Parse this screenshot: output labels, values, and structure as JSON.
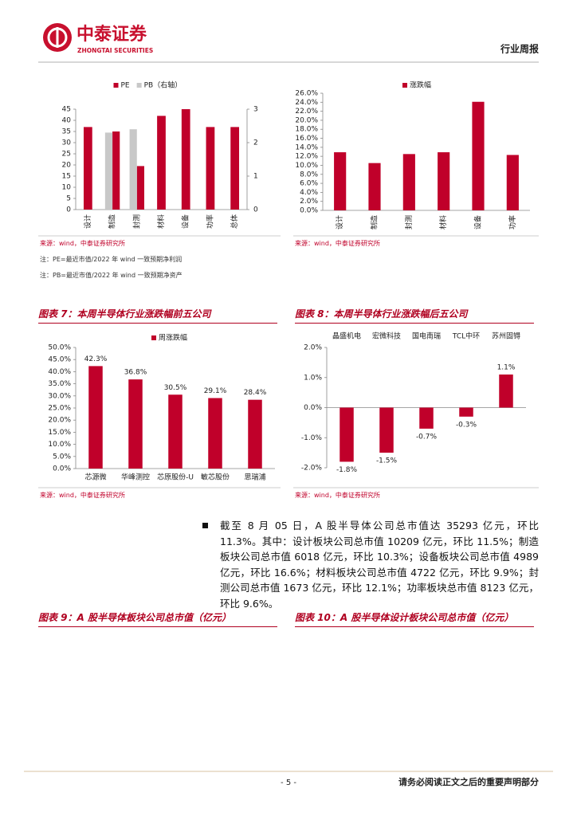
{
  "header": {
    "logo_cn": "中泰证券",
    "logo_en": "ZHONGTAI SECURITIES",
    "report_type": "行业周报"
  },
  "chart_data": [
    {
      "type": "bar",
      "categories": [
        "设计",
        "制造",
        "封测",
        "材料",
        "设备",
        "功率",
        "总体"
      ],
      "series": [
        {
          "name": "PE",
          "color": "#c0002a",
          "values": [
            37,
            35,
            19.5,
            42,
            45,
            37,
            37
          ]
        },
        {
          "name": "PB（右轴）",
          "color": "#c8c8c8",
          "axis": "y2",
          "values": [
            null,
            2.3,
            2.4,
            null,
            null,
            null,
            null
          ]
        }
      ],
      "ylim": [
        0,
        45
      ],
      "yticks": [
        0,
        5,
        10,
        15,
        20,
        25,
        30,
        35,
        40,
        45
      ],
      "y2lim": [
        0,
        3
      ],
      "y2ticks": [
        0,
        1,
        2,
        3
      ],
      "source": "来源：wind，中泰证券研究所",
      "notes": [
        "注：PE=最近市值/2022 年 wind 一致预期净利润",
        "注：PB=最近市值/2022 年 wind 一致预期净资产"
      ]
    },
    {
      "type": "bar",
      "categories": [
        "设计",
        "制造",
        "封测",
        "材料",
        "设备",
        "功率"
      ],
      "series": [
        {
          "name": "涨跌幅",
          "color": "#c0002a",
          "values": [
            12.9,
            10.5,
            12.5,
            12.9,
            24.1,
            12.3
          ]
        }
      ],
      "ylim": [
        0,
        26
      ],
      "yticks": [
        {
          "value": 0,
          "label": "0.0%"
        },
        {
          "value": 2,
          "label": "2.0%"
        },
        {
          "value": 4,
          "label": "4.0%"
        },
        {
          "value": 6,
          "label": "6.0%"
        },
        {
          "value": 8,
          "label": "8.0%"
        },
        {
          "value": 10,
          "label": "10.0%"
        },
        {
          "value": 12,
          "label": "12.0%"
        },
        {
          "value": 14,
          "label": "14.0%"
        },
        {
          "value": 16,
          "label": "16.0%"
        },
        {
          "value": 18,
          "label": "18.0%"
        },
        {
          "value": 20,
          "label": "20.0%"
        },
        {
          "value": 22,
          "label": "22.0%"
        },
        {
          "value": 24,
          "label": "24.0%"
        },
        {
          "value": 26,
          "label": "26.0%"
        }
      ],
      "source": "来源：wind，中泰证券研究所"
    },
    {
      "type": "bar",
      "title": "图表 7：本周半导体行业涨跌幅前五公司",
      "categories": [
        "芯源微",
        "华峰测控",
        "芯原股份-U",
        "敏芯股份",
        "思瑞浦"
      ],
      "series": [
        {
          "name": "周涨跌幅",
          "color": "#c0002a",
          "values": [
            42.3,
            36.8,
            30.5,
            29.1,
            28.4
          ],
          "value_labels": [
            "42.3%",
            "36.8%",
            "30.5%",
            "29.1%",
            "28.4%"
          ]
        }
      ],
      "ylim": [
        0,
        50
      ],
      "yticks": [
        {
          "value": 0,
          "label": "0.0%"
        },
        {
          "value": 5,
          "label": "5.0%"
        },
        {
          "value": 10,
          "label": "10.0%"
        },
        {
          "value": 15,
          "label": "15.0%"
        },
        {
          "value": 20,
          "label": "20.0%"
        },
        {
          "value": 25,
          "label": "25.0%"
        },
        {
          "value": 30,
          "label": "30.0%"
        },
        {
          "value": 35,
          "label": "35.0%"
        },
        {
          "value": 40,
          "label": "40.0%"
        },
        {
          "value": 45,
          "label": "45.0%"
        },
        {
          "value": 50,
          "label": "50.0%"
        }
      ],
      "source": "来源：wind，中泰证券研究所"
    },
    {
      "type": "bar",
      "title": "图表 8：本周半导体行业涨跌幅后五公司",
      "categories": [
        "晶盛机电",
        "宏微科技",
        "国电南瑞",
        "TCL中环",
        "苏州固锝"
      ],
      "values": [
        -1.8,
        -1.5,
        -0.7,
        -0.3,
        1.1
      ],
      "color": "#c0002a",
      "value_labels": [
        "-1.8%",
        "-1.5%",
        "-0.7%",
        "-0.3%",
        "1.1%"
      ],
      "ylim": [
        -2,
        2
      ],
      "yticks": [
        {
          "value": -2,
          "label": "-2.0%"
        },
        {
          "value": -1,
          "label": "-1.0%"
        },
        {
          "value": 0,
          "label": "0.0%"
        },
        {
          "value": 1,
          "label": "1.0%"
        },
        {
          "value": 2,
          "label": "2.0%"
        }
      ],
      "source": "来源：wind，中泰证券研究所"
    }
  ],
  "document": {
    "paragraph": "截至 8 月 05 日，A 股半导体公司总市值达 35293 亿元，环比 11.3%。其中：设计板块公司总市值 10209 亿元，环比 11.5%；制造板块公司总市值 6018 亿元，环比 10.3%；设备板块公司总市值 4989 亿元，环比 16.6%；材料板块公司总市值 4722 亿元，环比 9.9%；封测公司总市值 1673 亿元，环比 12.1%；功率板块总市值 8123 亿元，环比 9.6%。",
    "figure_titles": [
      "图表 9：A 股半导体板块公司总市值（亿元）",
      "图表 10：A 股半导体设计板块公司总市值（亿元）"
    ]
  },
  "footer": {
    "page": "- 5 -",
    "disclaimer": "请务必阅读正文之后的重要声明部分"
  }
}
